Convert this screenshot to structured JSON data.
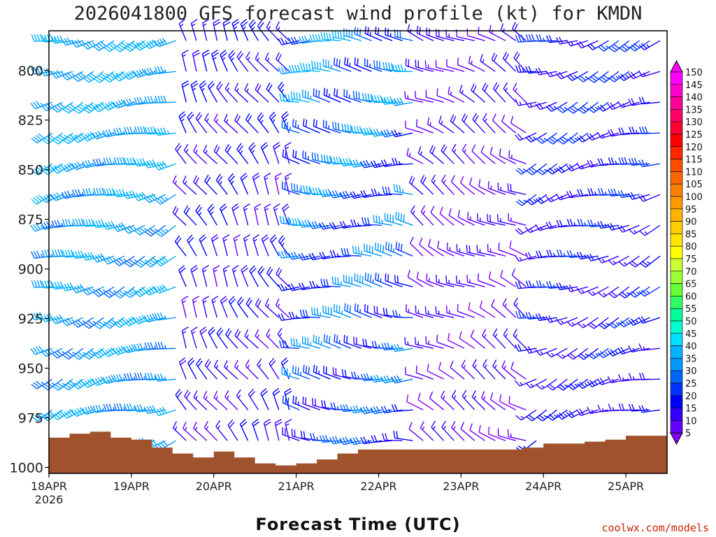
{
  "chart_data": {
    "type": "wind-barb-profile",
    "title": "2026041800 GFS forecast wind profile (kt) for KMDN",
    "xlabel": "Forecast Time (UTC)",
    "ylabel": "",
    "y_axis": {
      "type": "pressure",
      "units": "hPa",
      "ylim": [
        1003,
        780
      ],
      "ticks": [
        800,
        825,
        850,
        875,
        900,
        925,
        950,
        975,
        1000
      ]
    },
    "x_axis": {
      "units": "days since 18APR 00Z",
      "xlim": [
        0,
        7.5
      ],
      "ticks": [
        {
          "t": 0,
          "label": "18APR",
          "sublabel": "2026"
        },
        {
          "t": 1,
          "label": "19APR"
        },
        {
          "t": 2,
          "label": "20APR"
        },
        {
          "t": 3,
          "label": "21APR"
        },
        {
          "t": 4,
          "label": "22APR"
        },
        {
          "t": 5,
          "label": "23APR"
        },
        {
          "t": 6,
          "label": "24APR"
        },
        {
          "t": 7,
          "label": "25APR"
        }
      ]
    },
    "surface_pressure": {
      "t": [
        0,
        0.25,
        0.5,
        0.75,
        1.0,
        1.25,
        1.5,
        1.75,
        2.0,
        2.25,
        2.5,
        2.75,
        3.0,
        3.25,
        3.5,
        3.75,
        4.0,
        4.25,
        4.5,
        4.75,
        5.0,
        5.25,
        5.5,
        5.75,
        6.0,
        6.25,
        6.5,
        6.75,
        7.0,
        7.25,
        7.5
      ],
      "hpa": [
        985,
        983,
        982,
        985,
        986,
        990,
        993,
        995,
        992,
        995,
        998,
        999,
        998,
        996,
        993,
        991,
        991,
        991,
        991,
        991,
        991,
        991,
        991,
        990,
        988,
        988,
        987,
        986,
        984,
        984,
        983
      ]
    },
    "barbs": {
      "description": "Wind barbs plotted every 3 h at approx 15 hPa intervals; color encodes speed (kt).",
      "regimes": [
        {
          "t_range": [
            0,
            1.6
          ],
          "direction_deg": 250,
          "speed_kt_range": [
            30,
            45
          ]
        },
        {
          "t_range": [
            1.6,
            3.0
          ],
          "direction_deg": 330,
          "speed_kt_range": [
            10,
            25
          ]
        },
        {
          "t_range": [
            3.0,
            4.5
          ],
          "direction_deg": 275,
          "speed_kt_range": [
            10,
            45
          ]
        },
        {
          "t_range": [
            4.5,
            5.8
          ],
          "direction_deg": 300,
          "speed_kt_range": [
            5,
            20
          ]
        },
        {
          "t_range": [
            5.8,
            7.5
          ],
          "direction_deg": 250,
          "speed_kt_range": [
            10,
            30
          ]
        }
      ]
    },
    "colorbar": {
      "units": "kt",
      "levels": [
        "150",
        "145",
        "140",
        "135",
        "130",
        "125",
        "120",
        "115",
        "110",
        "105",
        "100",
        "95",
        "90",
        "85",
        "80",
        "75",
        "70",
        "65",
        "60",
        "55",
        "50",
        "45",
        "40",
        "35",
        "30",
        "25",
        "20",
        "15",
        "10",
        "5"
      ],
      "colors": [
        "#ff00ff",
        "#ff00cc",
        "#ff0099",
        "#ff0066",
        "#ff0033",
        "#ff0000",
        "#ff2600",
        "#ff4c00",
        "#ff6600",
        "#ff8000",
        "#ff9900",
        "#ffb300",
        "#ffcc00",
        "#ffe600",
        "#ffff00",
        "#ccff33",
        "#99ff33",
        "#66ff33",
        "#33ff66",
        "#00ff99",
        "#00ffcc",
        "#00e0ff",
        "#00b3ff",
        "#0099ff",
        "#0066ff",
        "#0033ff",
        "#0000ff",
        "#3300ff",
        "#6600ff",
        "#8800ff"
      ]
    },
    "terrain_color": "#a0522d",
    "credit": "coolwx.com/models"
  }
}
